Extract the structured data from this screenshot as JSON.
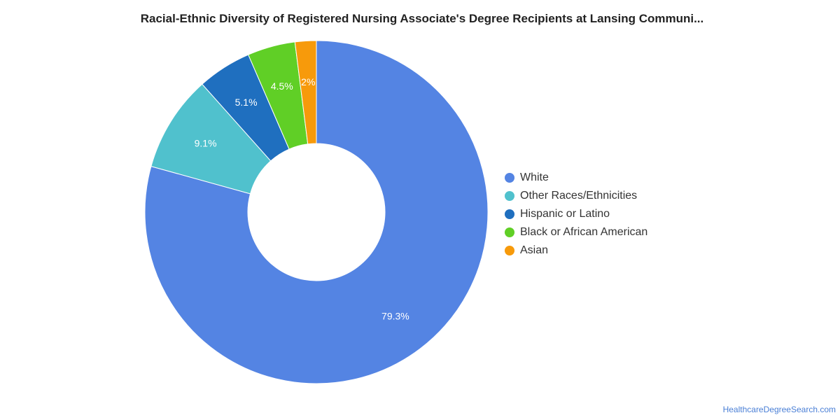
{
  "chart_data": {
    "type": "pie",
    "variant": "donut",
    "title": "Racial-Ethnic Diversity of Registered Nursing Associate's Degree Recipients at Lansing Communi...",
    "legend_position": "right",
    "slices": [
      {
        "name": "White",
        "value": 79.3,
        "label": "79.3%",
        "color": "#5484e3"
      },
      {
        "name": "Other Races/Ethnicities",
        "value": 9.1,
        "label": "9.1%",
        "color": "#50c1cd"
      },
      {
        "name": "Hispanic or Latino",
        "value": 5.1,
        "label": "5.1%",
        "color": "#1f6fbf"
      },
      {
        "name": "Black or African American",
        "value": 4.5,
        "label": "4.5%",
        "color": "#60cf26"
      },
      {
        "name": "Asian",
        "value": 2.0,
        "label": "2%",
        "color": "#f79a0b"
      }
    ]
  },
  "footer": {
    "source": "HealthcareDegreeSearch.com"
  }
}
